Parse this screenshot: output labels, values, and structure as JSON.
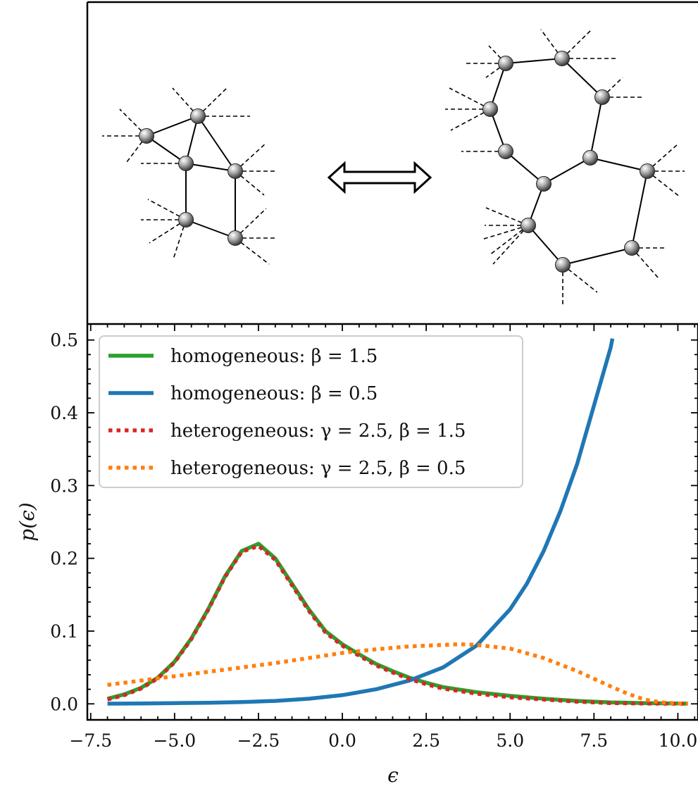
{
  "chart_data": {
    "type": "line",
    "title": "",
    "xlabel": "ϵ",
    "ylabel": "p(ϵ)",
    "xlim": [
      -7.6,
      10.6
    ],
    "ylim": [
      -0.022,
      0.522
    ],
    "xticks": [
      -7.5,
      -5.0,
      -2.5,
      0.0,
      2.5,
      5.0,
      7.5,
      10.0
    ],
    "xtick_labels": [
      "−7.5",
      "−5.0",
      "−2.5",
      "0.0",
      "2.5",
      "5.0",
      "7.5",
      "10.0"
    ],
    "yticks": [
      0.0,
      0.1,
      0.2,
      0.3,
      0.4,
      0.5
    ],
    "ytick_labels": [
      "0.0",
      "0.1",
      "0.2",
      "0.3",
      "0.4",
      "0.5"
    ],
    "grid": false,
    "legend_position": "top-left",
    "series": [
      {
        "name": "homogeneous: β = 1.5",
        "color": "#2ca02c",
        "style": "solid",
        "x": [
          -7.0,
          -6.5,
          -6.0,
          -5.5,
          -5.0,
          -4.5,
          -4.0,
          -3.5,
          -3.0,
          -2.5,
          -2.0,
          -1.5,
          -1.0,
          -0.5,
          0.0,
          0.5,
          1.0,
          1.5,
          2.0,
          2.5,
          3.0,
          4.0,
          5.0,
          6.0,
          7.0,
          8.0,
          9.0,
          10.0,
          10.3
        ],
        "y": [
          0.007,
          0.013,
          0.022,
          0.036,
          0.058,
          0.09,
          0.13,
          0.175,
          0.21,
          0.22,
          0.2,
          0.165,
          0.13,
          0.1,
          0.082,
          0.068,
          0.055,
          0.045,
          0.036,
          0.029,
          0.023,
          0.016,
          0.011,
          0.007,
          0.004,
          0.002,
          0.001,
          0.0005,
          0.0003
        ]
      },
      {
        "name": "homogeneous: β = 0.5",
        "color": "#1f77b4",
        "style": "solid",
        "x": [
          -7.0,
          -6.0,
          -5.0,
          -4.0,
          -3.0,
          -2.0,
          -1.0,
          0.0,
          1.0,
          2.0,
          3.0,
          4.0,
          5.0,
          5.5,
          6.0,
          6.5,
          7.0,
          7.5,
          8.0,
          8.05
        ],
        "y": [
          0.0003,
          0.0005,
          0.001,
          0.0015,
          0.0025,
          0.004,
          0.007,
          0.012,
          0.02,
          0.032,
          0.05,
          0.08,
          0.13,
          0.165,
          0.21,
          0.265,
          0.33,
          0.41,
          0.49,
          0.502
        ]
      },
      {
        "name": "heterogeneous: γ = 2.5, β = 1.5",
        "color": "#d62728",
        "style": "dotted",
        "x": [
          -7.0,
          -6.5,
          -6.0,
          -5.5,
          -5.0,
          -4.5,
          -4.0,
          -3.5,
          -3.0,
          -2.5,
          -2.0,
          -1.5,
          -1.0,
          -0.5,
          0.0,
          0.5,
          1.0,
          1.5,
          2.0,
          2.5,
          3.0,
          4.0,
          5.0,
          6.0,
          7.0,
          8.0,
          9.0,
          10.0,
          10.3
        ],
        "y": [
          0.006,
          0.012,
          0.021,
          0.035,
          0.057,
          0.089,
          0.129,
          0.174,
          0.209,
          0.217,
          0.198,
          0.163,
          0.128,
          0.098,
          0.08,
          0.066,
          0.053,
          0.043,
          0.034,
          0.027,
          0.021,
          0.014,
          0.009,
          0.006,
          0.003,
          0.001,
          0.0005,
          0.0002,
          0.0001
        ]
      },
      {
        "name": "heterogeneous: γ = 2.5, β = 0.5",
        "color": "#ff7f0e",
        "style": "dotted",
        "x": [
          -7.0,
          -6.0,
          -5.0,
          -4.0,
          -3.0,
          -2.0,
          -1.0,
          0.0,
          1.0,
          2.0,
          3.0,
          3.5,
          4.0,
          5.0,
          6.0,
          7.0,
          8.0,
          8.5,
          9.0,
          9.5,
          10.0,
          10.3
        ],
        "y": [
          0.026,
          0.032,
          0.038,
          0.044,
          0.05,
          0.056,
          0.063,
          0.07,
          0.075,
          0.079,
          0.081,
          0.082,
          0.081,
          0.076,
          0.063,
          0.045,
          0.024,
          0.014,
          0.006,
          0.002,
          0.0005,
          0.0002
        ]
      }
    ]
  },
  "diagram": {
    "arrow": "⟺"
  }
}
